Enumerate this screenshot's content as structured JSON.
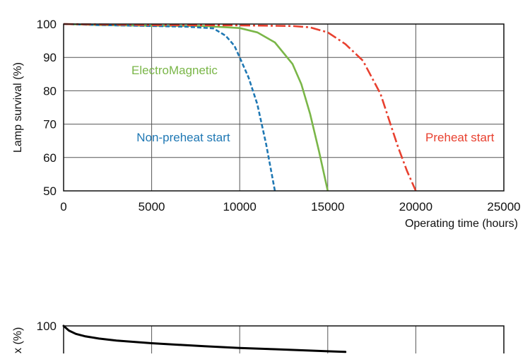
{
  "chart_data": [
    {
      "type": "line",
      "xlabel": "Operating time (hours)",
      "ylabel": "Lamp survival  (%)",
      "xlim": [
        0,
        25000
      ],
      "ylim": [
        50,
        100
      ],
      "xticks": [
        "0",
        "5000",
        "10000",
        "15000",
        "20000",
        "25000"
      ],
      "yticks": [
        "50",
        "60",
        "70",
        "80",
        "90",
        "100"
      ],
      "grid": true,
      "series": [
        {
          "name": "ElectroMagnetic",
          "color": "#7ab648",
          "dash": "solid",
          "label_pos": [
            6300,
            85
          ],
          "x": [
            0,
            2000,
            5000,
            8000,
            10000,
            11000,
            12000,
            13000,
            13500,
            14000,
            14500,
            15000
          ],
          "y": [
            100,
            99.7,
            99.5,
            99.4,
            98.8,
            97.5,
            94.5,
            88,
            82,
            73,
            62,
            50
          ]
        },
        {
          "name": "Non-preheat start",
          "color": "#1f78b4",
          "dash": "dotted",
          "label_pos": [
            6800,
            64.8
          ],
          "x": [
            0,
            2000,
            5000,
            7000,
            8500,
            9200,
            9700,
            10000,
            10500,
            11000,
            11500,
            12000
          ],
          "y": [
            100,
            99.7,
            99.4,
            99.2,
            98.7,
            96.5,
            93.5,
            90,
            84,
            76,
            64,
            50
          ]
        },
        {
          "name": "Preheat start",
          "color": "#e8402f",
          "dash": "dashdot",
          "label_pos": [
            22500,
            64.8
          ],
          "x": [
            0,
            5000,
            10000,
            13000,
            14000,
            15000,
            16000,
            17000,
            18000,
            18500,
            19000,
            19500,
            20000
          ],
          "y": [
            100,
            99.7,
            99.6,
            99.4,
            99,
            97.5,
            94,
            89,
            79,
            71,
            63,
            56,
            50
          ]
        }
      ]
    },
    {
      "type": "line",
      "ylabel": "x (%)",
      "xlim": [
        0,
        25000
      ],
      "ylim": [
        50,
        100
      ],
      "yticks": [
        "100"
      ],
      "grid": true,
      "series": [
        {
          "color": "#000000",
          "dash": "solid",
          "x": [
            0,
            300,
            700,
            1200,
            2000,
            3000,
            5000,
            8000,
            10000,
            12000,
            15000,
            16000
          ],
          "y": [
            100,
            98.6,
            97.6,
            96.9,
            96.2,
            95.6,
            94.8,
            93.9,
            93.4,
            93,
            92.4,
            92.2
          ]
        }
      ]
    }
  ]
}
